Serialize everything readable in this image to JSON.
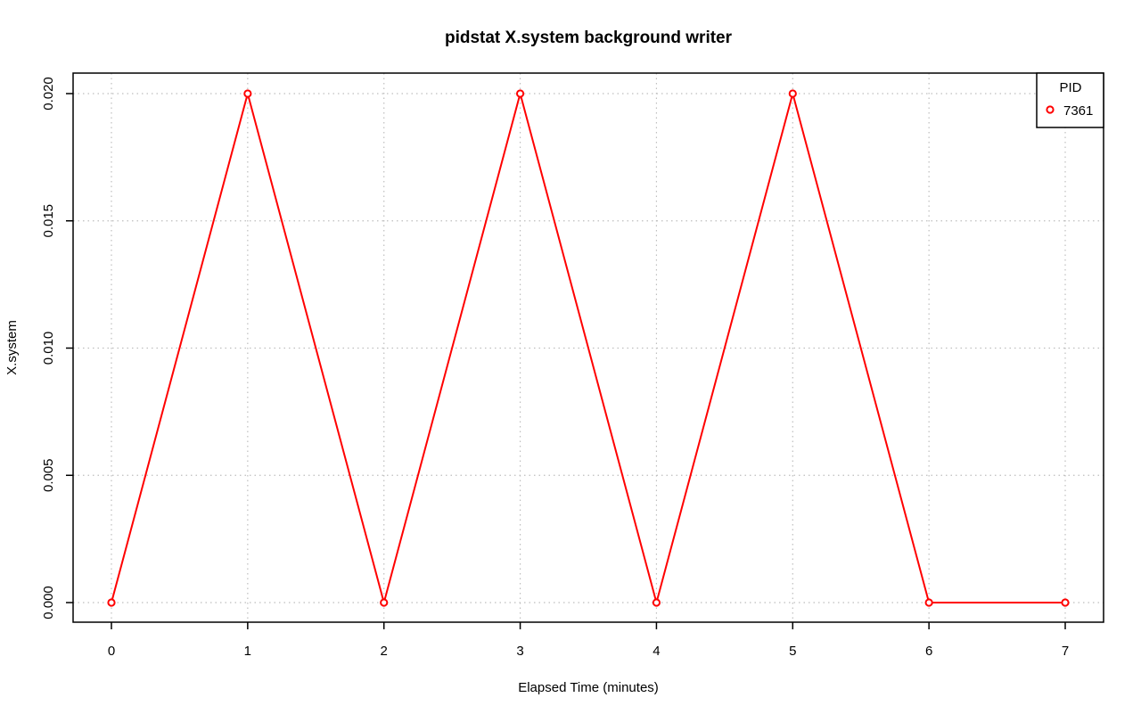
{
  "chart_data": {
    "type": "line",
    "title": "pidstat X.system background writer",
    "xlabel": "Elapsed Time (minutes)",
    "ylabel": "X.system",
    "xlim": [
      0,
      7
    ],
    "ylim": [
      0.0,
      0.02
    ],
    "x_ticks": [
      0,
      1,
      2,
      3,
      4,
      5,
      6,
      7
    ],
    "x_tick_labels": [
      "0",
      "1",
      "2",
      "3",
      "4",
      "5",
      "6",
      "7"
    ],
    "y_ticks": [
      0.0,
      0.005,
      0.01,
      0.015,
      0.02
    ],
    "y_tick_labels": [
      "0.000",
      "0.005",
      "0.010",
      "0.015",
      "0.020"
    ],
    "grid": true,
    "legend": {
      "title": "PID",
      "placement": "top-right"
    },
    "series": [
      {
        "name": "7361",
        "color": "#ff0000",
        "marker": "open-circle",
        "x": [
          0,
          1,
          2,
          3,
          4,
          5,
          6,
          7
        ],
        "y": [
          0.0,
          0.02,
          0.0,
          0.02,
          0.0,
          0.02,
          0.0,
          0.0
        ]
      }
    ]
  }
}
